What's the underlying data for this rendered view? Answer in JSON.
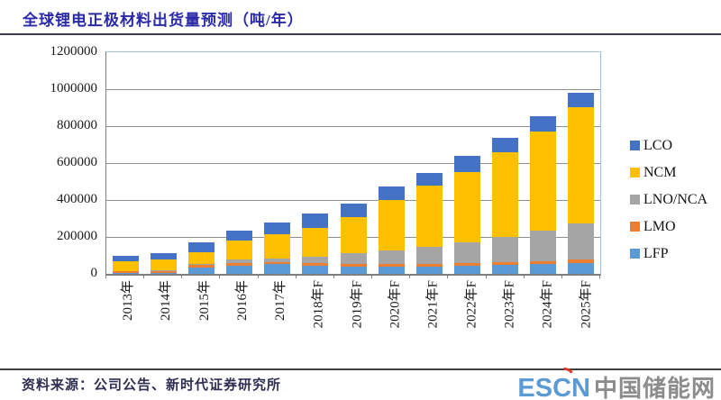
{
  "title": "全球锂电正极材料出货量预测（吨/年）",
  "source_note": "资料来源：公司公告、新时代证券研究所",
  "logo": {
    "escn": "ESCN",
    "cn": "中国储能网",
    "accent_color": "#d93a2b",
    "escn_color": "#5b9bd5",
    "cn_color": "#8c8c8c"
  },
  "chart_data": {
    "type": "bar",
    "stacked": true,
    "title": "全球锂电正极材料出货量预测（吨/年）",
    "xlabel": "",
    "ylabel": "",
    "ylim": [
      0,
      1200000
    ],
    "yticks": [
      0,
      200000,
      400000,
      600000,
      800000,
      1000000,
      1200000
    ],
    "grid": true,
    "legend_position": "right",
    "legend_order": [
      "LCO",
      "NCM",
      "LNO/NCA",
      "LMO",
      "LFP"
    ],
    "categories": [
      "2013年",
      "2014年",
      "2015年",
      "2016年",
      "2017年",
      "2018年F",
      "2019年F",
      "2020年F",
      "2021年F",
      "2022年F",
      "2023年F",
      "2024年F",
      "2025年F"
    ],
    "series": [
      {
        "name": "LFP",
        "color": "#5B9BD5",
        "values": [
          5000,
          6000,
          35000,
          46000,
          52000,
          44000,
          38000,
          40000,
          40000,
          44000,
          48000,
          54000,
          58000
        ]
      },
      {
        "name": "LMO",
        "color": "#ED7D31",
        "values": [
          8000,
          9000,
          13000,
          13000,
          11000,
          15000,
          16000,
          16000,
          12000,
          16000,
          16000,
          16000,
          20000
        ]
      },
      {
        "name": "LNO/NCA",
        "color": "#A5A5A5",
        "values": [
          4000,
          5000,
          8000,
          19000,
          21000,
          36000,
          56000,
          70000,
          96000,
          112000,
          136000,
          162000,
          196000
        ]
      },
      {
        "name": "NCM",
        "color": "#FFC000",
        "values": [
          50000,
          58000,
          62000,
          102000,
          132000,
          156000,
          198000,
          274000,
          330000,
          380000,
          460000,
          538000,
          628000
        ]
      },
      {
        "name": "LCO",
        "color": "#4472C4",
        "values": [
          30000,
          33000,
          54000,
          55000,
          61000,
          75000,
          74000,
          72000,
          70000,
          86000,
          78000,
          86000,
          80000
        ]
      }
    ]
  }
}
